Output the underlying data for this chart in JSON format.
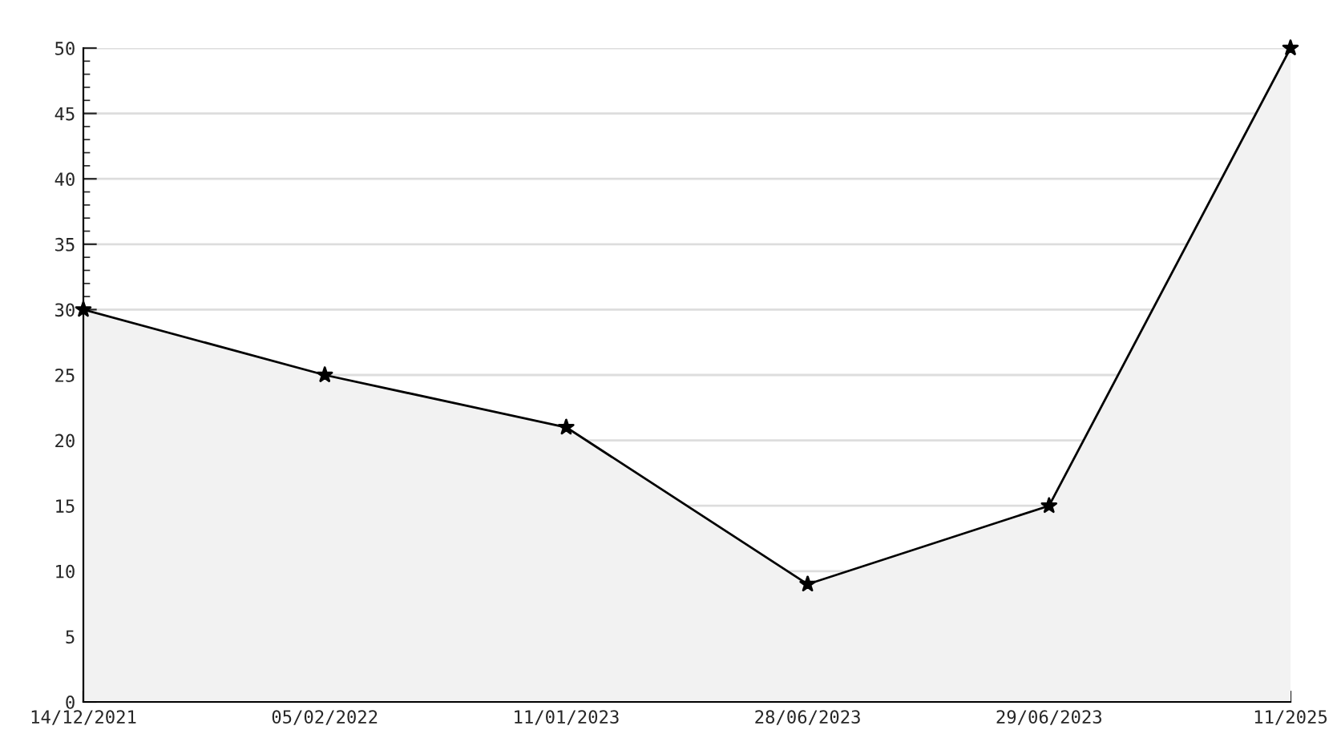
{
  "chart_data": {
    "type": "area",
    "categories": [
      "14/12/2021",
      "05/02/2022",
      "11/01/2023",
      "28/06/2023",
      "29/06/2023",
      "11/2025"
    ],
    "series": [
      {
        "color": "#f2f2f2",
        "values": [
          30,
          25,
          21,
          9,
          15,
          50
        ]
      }
    ],
    "ylim": [
      0,
      50
    ],
    "yticks": [
      0,
      5,
      10,
      15,
      20,
      25,
      30,
      35,
      40,
      45,
      50
    ],
    "grid": "y",
    "marker": "star",
    "line_style": "solid"
  }
}
